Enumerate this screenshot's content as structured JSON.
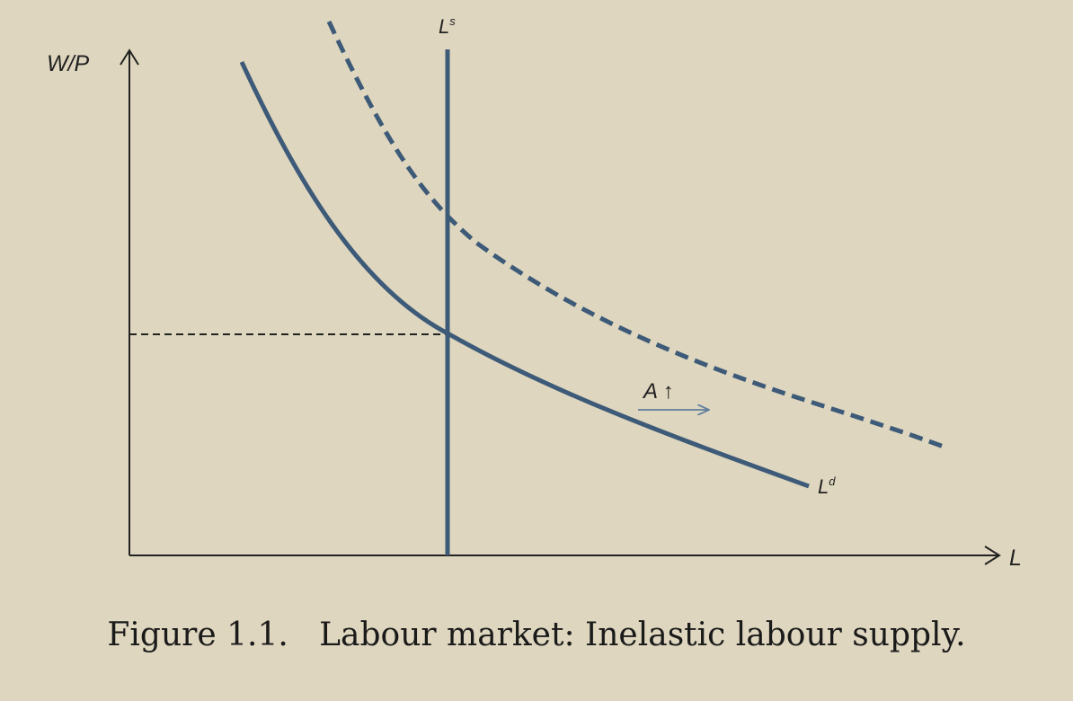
{
  "figure": {
    "caption": "Figure 1.1.   Labour market: Inelastic labour supply."
  },
  "axes": {
    "y_label": "W/P",
    "x_label": "L"
  },
  "curves": {
    "supply_label": "L",
    "supply_sup": "s",
    "demand_label": "L",
    "demand_sup": "d"
  },
  "annotation": {
    "shift_label": "A ↑"
  },
  "colors": {
    "background": "#ded6be",
    "curve": "#3d5a78",
    "axis": "#222222",
    "arrow": "#5f7f9c"
  }
}
